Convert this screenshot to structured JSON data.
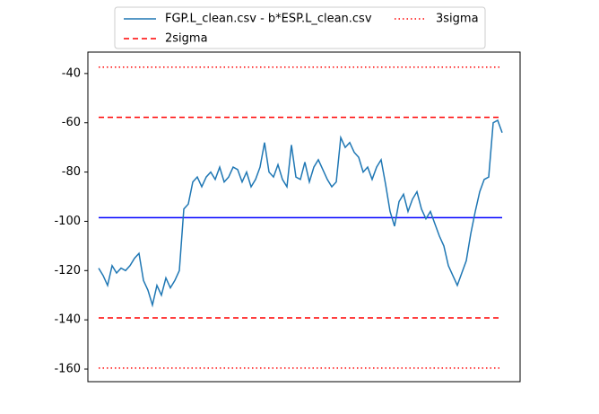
{
  "chart_data": {
    "type": "line",
    "series": [
      {
        "name": "FGP.L_clean.csv - b*ESP.L_clean.csv",
        "color": "#1f77b4",
        "values": [
          -119,
          -122,
          -126,
          -118,
          -121,
          -119,
          -120,
          -118,
          -115,
          -113,
          -124,
          -128,
          -134,
          -126,
          -130,
          -123,
          -127,
          -124,
          -120,
          -95,
          -93,
          -84,
          -82,
          -86,
          -82,
          -80,
          -83,
          -78,
          -84,
          -82,
          -78,
          -79,
          -84,
          -80,
          -86,
          -83,
          -78,
          -68,
          -80,
          -82,
          -77,
          -83,
          -86,
          -69,
          -82,
          -83,
          -76,
          -84,
          -78,
          -75,
          -79,
          -83,
          -86,
          -84,
          -66,
          -70,
          -68,
          -72,
          -74,
          -80,
          -78,
          -83,
          -78,
          -75,
          -85,
          -96,
          -102,
          -92,
          -89,
          -96,
          -91,
          -88,
          -95,
          -99,
          -96,
          -101,
          -106,
          -110,
          -118,
          -122,
          -126,
          -121,
          -116,
          -105,
          -96,
          -88,
          -83,
          -82,
          -60,
          -59,
          -64
        ]
      }
    ],
    "mean": {
      "value": -98.5,
      "color": "#0000ff"
    },
    "bands": [
      {
        "name": "2sigma",
        "color": "#ff0000",
        "dash": "dashed",
        "values": [
          -57.8,
          -139.2
        ]
      },
      {
        "name": "3sigma",
        "color": "#ff0000",
        "dash": "dotted",
        "values": [
          -37.4,
          -159.6
        ]
      }
    ],
    "ylim": [
      -165.1,
      -31.3
    ],
    "yticks": [
      -40,
      -60,
      -80,
      -100,
      -120,
      -140,
      -160
    ]
  }
}
